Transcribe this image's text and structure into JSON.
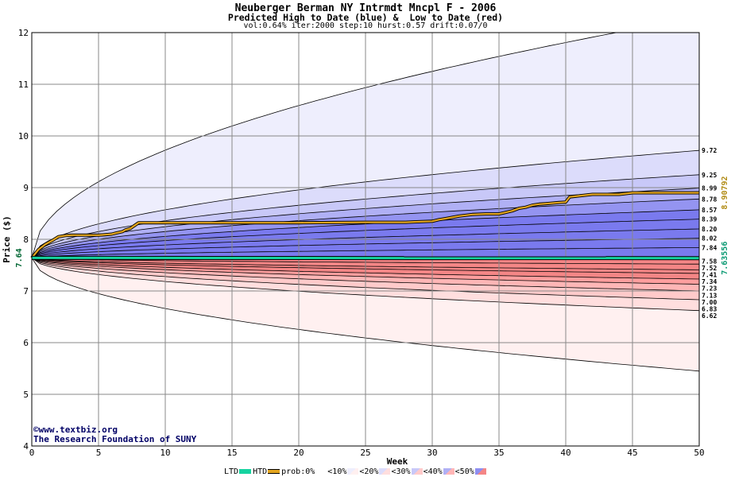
{
  "header": {
    "title": "Neuberger Berman NY Intrmdt Mncpl F - 2006",
    "subtitle": "Predicted High to Date (blue) &  Low to Date (red)",
    "params": "vol:0.64% iter:2000 step:10 hurst:0.57 drift:0.07/0"
  },
  "credits": {
    "line1": "©www.textbiz.org",
    "line2": "The Research Foundation of SUNY"
  },
  "legend": {
    "ltd": "LTD",
    "htd": "HTD",
    "prob": "prob:0%",
    "b10": "<10%",
    "b20": "<20%",
    "b30": "<30%",
    "b40": "<40%",
    "b50": "<50%"
  },
  "chart_data": {
    "type": "area",
    "xlabel": "Week",
    "ylabel": "Price ($)",
    "xlim": [
      0,
      50
    ],
    "ylim": [
      4,
      12
    ],
    "xticks": [
      0,
      5,
      10,
      15,
      20,
      25,
      30,
      35,
      40,
      45,
      50
    ],
    "yticks": [
      4,
      5,
      6,
      7,
      8,
      9,
      10,
      11,
      12
    ],
    "grid": true,
    "start_price": 7.64,
    "start_label": "7.64",
    "high_bands_end": [
      12.3,
      9.72,
      9.25,
      8.99,
      8.78,
      8.57,
      8.39,
      8.2,
      8.02,
      7.84
    ],
    "low_bands_end": [
      7.52,
      7.41,
      7.34,
      7.23,
      7.13,
      7.0,
      6.83,
      6.62,
      5.45
    ],
    "right_labels": [
      "9.72",
      "9.25",
      "8.99",
      "8.78",
      "8.57",
      "8.39",
      "8.20",
      "8.02",
      "7.84",
      "7.58",
      "7.52",
      "7.41",
      "7.34",
      "7.23",
      "7.13",
      "7.00",
      "6.83",
      "6.62"
    ],
    "band_colors": {
      "blue": [
        "#eeeefd",
        "#dcdcfb",
        "#c8c8f8",
        "#b0b0f5",
        "#9494f1",
        "#7a7aee"
      ],
      "red": [
        "#fff0f0",
        "#ffdede",
        "#ffcaca",
        "#ffb6b6",
        "#ff9e9e",
        "#f48686"
      ]
    },
    "series": [
      {
        "name": "HTD",
        "color": "#e3a51f",
        "end_label": "8.90792",
        "x": [
          0,
          0.5,
          1,
          1.5,
          2,
          2.5,
          3,
          4,
          5,
          5.5,
          6,
          6.3,
          6.8,
          7,
          7.4,
          7.6,
          8,
          10,
          15,
          20,
          25,
          28,
          29,
          30,
          30.5,
          31,
          32,
          33,
          34,
          35,
          35.5,
          36,
          36.5,
          37,
          37.5,
          38,
          38.5,
          39,
          39.5,
          40,
          40.3,
          41,
          42,
          44,
          45,
          50
        ],
        "values": [
          7.64,
          7.8,
          7.9,
          7.97,
          8.05,
          8.07,
          8.08,
          8.08,
          8.08,
          8.09,
          8.1,
          8.12,
          8.15,
          8.18,
          8.21,
          8.25,
          8.32,
          8.32,
          8.32,
          8.32,
          8.33,
          8.33,
          8.34,
          8.35,
          8.38,
          8.4,
          8.45,
          8.48,
          8.49,
          8.49,
          8.52,
          8.55,
          8.6,
          8.62,
          8.66,
          8.68,
          8.69,
          8.7,
          8.71,
          8.72,
          8.82,
          8.84,
          8.87,
          8.87,
          8.9,
          8.9
        ]
      },
      {
        "name": "LTD",
        "color": "#16d3a0",
        "end_label": "7.63556",
        "x": [
          0,
          50
        ],
        "values": [
          7.64,
          7.635
        ]
      }
    ]
  }
}
